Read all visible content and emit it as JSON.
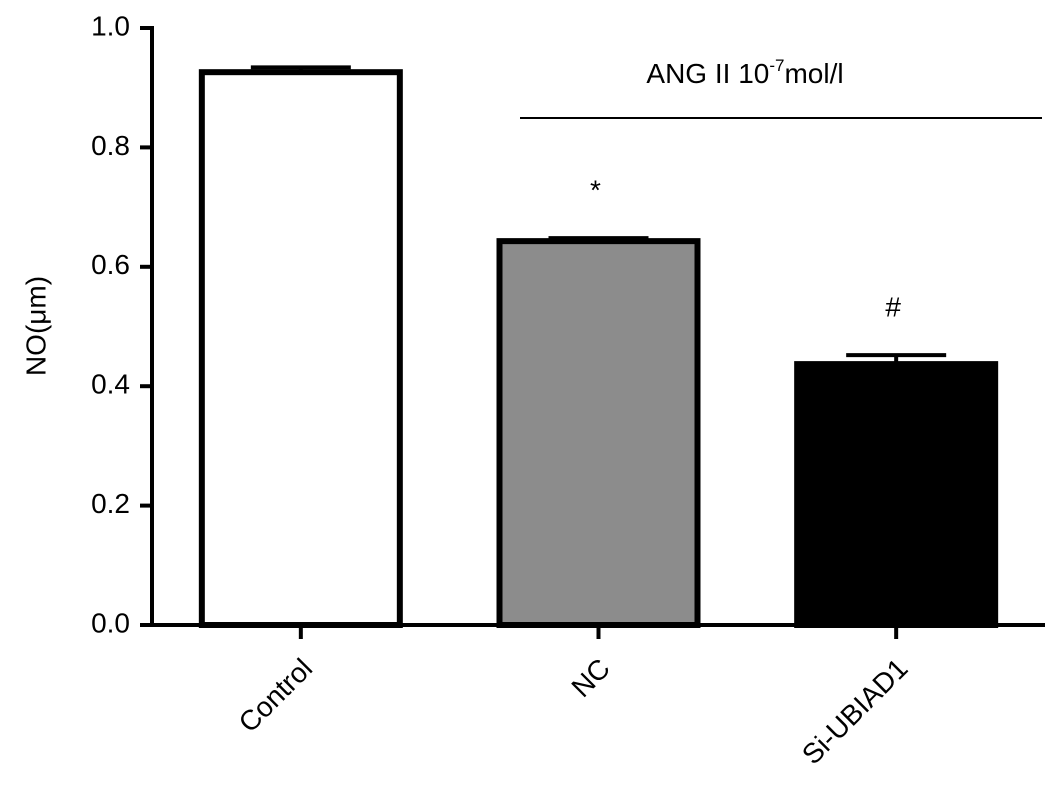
{
  "chart_data": {
    "type": "bar",
    "y_label": "NO(μm)",
    "categories": [
      "Control",
      "NC",
      "Si-UBIAD1"
    ],
    "values": [
      0.926,
      0.643,
      0.437
    ],
    "errors": [
      0.008,
      0.005,
      0.015
    ],
    "colors": [
      "#ffffff",
      "#8c8c8c",
      "#000000"
    ],
    "significance": [
      null,
      "*",
      "#"
    ],
    "annotation": {
      "prefix": "ANG II 10",
      "superscript": "-7",
      "suffix": "mol/l"
    },
    "ylim": [
      0,
      1.0
    ],
    "yticks": [
      {
        "value": 0,
        "label": "0.0"
      },
      0.2,
      0.4,
      0.6,
      0.8,
      {
        "value": 1.0,
        "label": "1.0"
      }
    ],
    "grid": false
  }
}
